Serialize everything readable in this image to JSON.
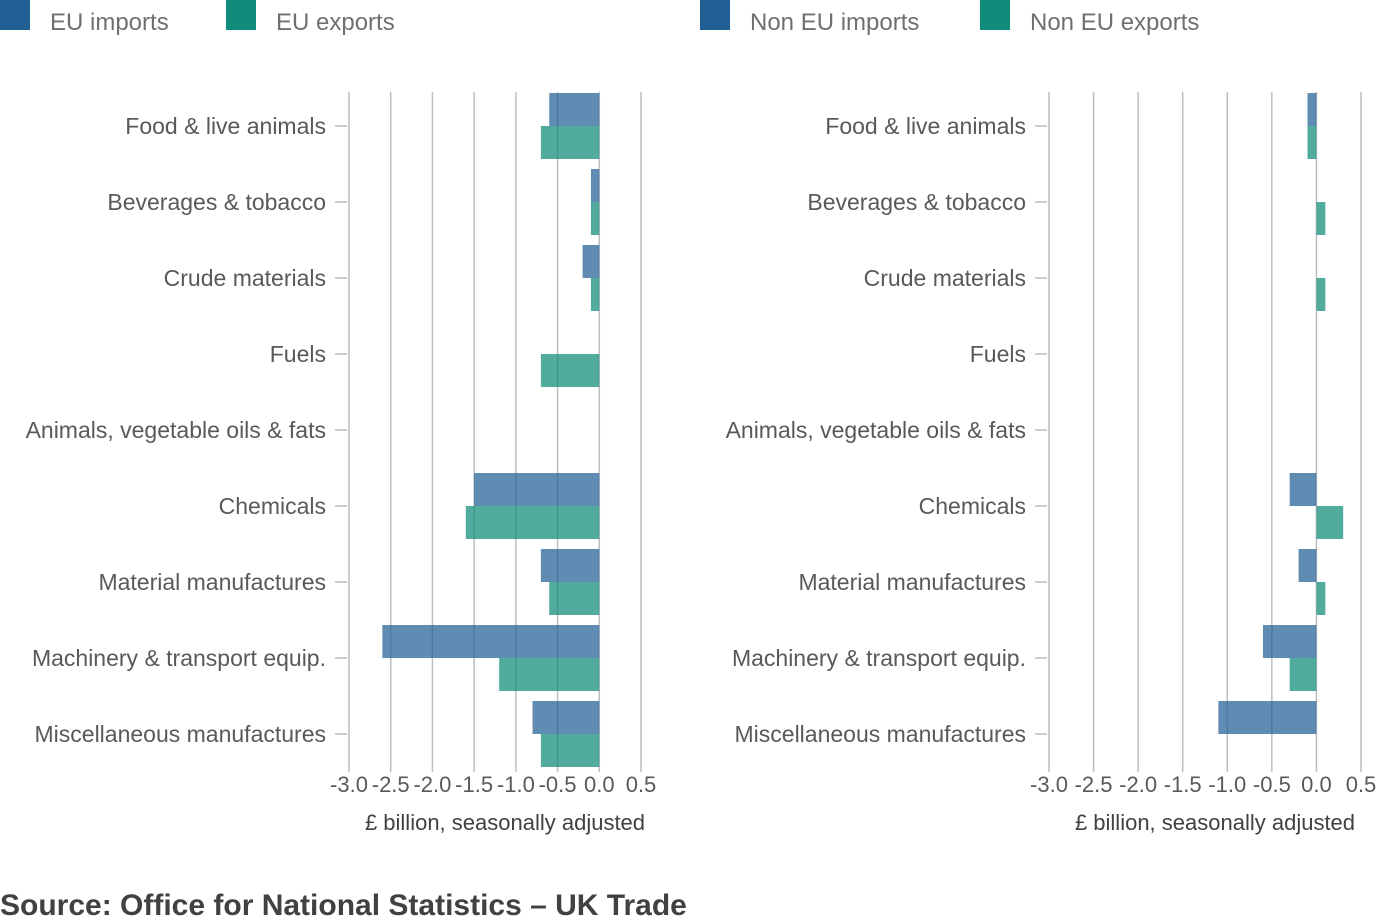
{
  "source": "Source: Office for National Statistics – UK Trade",
  "colors": {
    "imports": "#206095",
    "exports": "#0f8c79"
  },
  "chart_data": [
    {
      "type": "bar",
      "orientation": "horizontal",
      "categories": [
        "Food & live animals",
        "Beverages & tobacco",
        "Crude materials",
        "Fuels",
        "Animals, vegetable oils & fats",
        "Chemicals",
        "Material manufactures",
        "Machinery & transport equip.",
        "Miscellaneous manufactures"
      ],
      "series": [
        {
          "name": "EU imports",
          "color": "#206095",
          "values": [
            -0.6,
            -0.1,
            -0.2,
            0.0,
            0.0,
            -1.5,
            -0.7,
            -2.6,
            -0.8
          ]
        },
        {
          "name": "EU exports",
          "color": "#0f8c79",
          "values": [
            -0.7,
            -0.1,
            -0.1,
            -0.7,
            0.0,
            -1.6,
            -0.6,
            -1.2,
            -0.7
          ]
        }
      ],
      "xlabel": "£ billion, seasonally adjusted",
      "xlim": [
        -3.0,
        0.5
      ],
      "xticks": [
        -3.0,
        -2.5,
        -2.0,
        -1.5,
        -1.0,
        -0.5,
        0.0,
        0.5
      ],
      "xtick_labels": [
        "-3.0",
        "-2.5",
        "-2.0",
        "-1.5",
        "-1.0",
        "-0.5",
        "0.0",
        "0.5"
      ],
      "grid": true,
      "legend_position": "top-left"
    },
    {
      "type": "bar",
      "orientation": "horizontal",
      "categories": [
        "Food & live animals",
        "Beverages & tobacco",
        "Crude materials",
        "Fuels",
        "Animals, vegetable oils & fats",
        "Chemicals",
        "Material manufactures",
        "Machinery & transport equip.",
        "Miscellaneous manufactures"
      ],
      "series": [
        {
          "name": "Non EU imports",
          "color": "#206095",
          "values": [
            -0.1,
            0.0,
            0.0,
            0.0,
            0.0,
            -0.3,
            -0.2,
            -0.6,
            -1.1
          ]
        },
        {
          "name": "Non EU exports",
          "color": "#0f8c79",
          "values": [
            -0.1,
            0.1,
            0.1,
            0.0,
            0.0,
            0.3,
            0.1,
            -0.3,
            0.0
          ]
        }
      ],
      "xlabel": "£ billion, seasonally adjusted",
      "xlim": [
        -3.0,
        0.5
      ],
      "xticks": [
        -3.0,
        -2.5,
        -2.0,
        -1.5,
        -1.0,
        -0.5,
        0.0,
        0.5
      ],
      "xtick_labels": [
        "-3.0",
        "-2.5",
        "-2.0",
        "-1.5",
        "-1.0",
        "-0.5",
        "0.0",
        "0.5"
      ],
      "grid": true,
      "legend_position": "top-left"
    }
  ]
}
